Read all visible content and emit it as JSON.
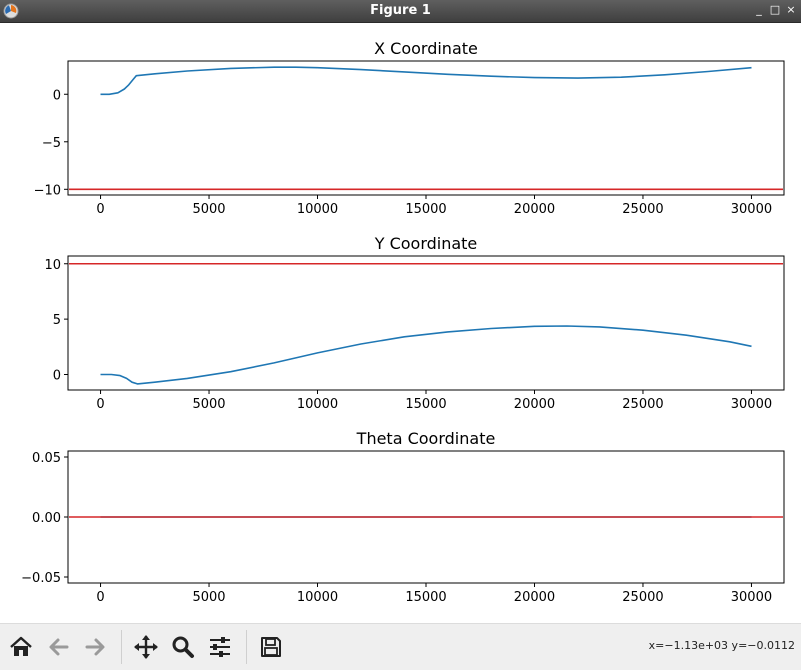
{
  "window": {
    "title": "Figure 1",
    "minimize_label": "_",
    "maximize_label": "□",
    "close_label": "×"
  },
  "toolbar": {
    "tools": [
      {
        "name": "home-icon"
      },
      {
        "name": "back-arrow-icon"
      },
      {
        "name": "forward-arrow-icon"
      },
      {
        "name": "pan-move-icon"
      },
      {
        "name": "zoom-magnifier-icon"
      },
      {
        "name": "configure-subplots-icon"
      },
      {
        "name": "save-floppy-icon"
      }
    ],
    "coordinate_readout": "x=−1.13e+03 y=−0.0112"
  },
  "colors": {
    "series": "#1f77b4",
    "limit_line": "#d62728",
    "axes": "#000000"
  },
  "chart_data": [
    {
      "type": "line",
      "title": "X Coordinate",
      "xlabel": "",
      "ylabel": "",
      "xlim": [
        -1500,
        31500
      ],
      "ylim": [
        -10.6,
        3.5
      ],
      "xticks": [
        0,
        5000,
        10000,
        15000,
        20000,
        25000,
        30000
      ],
      "xtick_labels": [
        "0",
        "5000",
        "10000",
        "15000",
        "20000",
        "25000",
        "30000"
      ],
      "yticks": [
        0,
        -5,
        -10
      ],
      "ytick_labels": [
        "0",
        "−5",
        "−10"
      ],
      "grid": false,
      "hlines": [
        -10
      ],
      "series": [
        {
          "x": [
            0,
            400,
            800,
            1100,
            1300,
            1500,
            1650,
            2500,
            4000,
            6000,
            8000,
            9000,
            10000,
            12000,
            14000,
            16000,
            18000,
            20000,
            22000,
            24000,
            26000,
            28000,
            30000
          ],
          "y": [
            0,
            0,
            0.15,
            0.55,
            1.0,
            1.55,
            1.95,
            2.15,
            2.45,
            2.72,
            2.85,
            2.85,
            2.8,
            2.6,
            2.35,
            2.1,
            1.9,
            1.75,
            1.7,
            1.8,
            2.05,
            2.4,
            2.8
          ]
        }
      ]
    },
    {
      "type": "line",
      "title": "Y Coordinate",
      "xlabel": "",
      "ylabel": "",
      "xlim": [
        -1500,
        31500
      ],
      "ylim": [
        -1.4,
        10.7
      ],
      "xticks": [
        0,
        5000,
        10000,
        15000,
        20000,
        25000,
        30000
      ],
      "xtick_labels": [
        "0",
        "5000",
        "10000",
        "15000",
        "20000",
        "25000",
        "30000"
      ],
      "yticks": [
        10,
        5,
        0
      ],
      "ytick_labels": [
        "10",
        "5",
        "0"
      ],
      "grid": false,
      "hlines": [
        10
      ],
      "series": [
        {
          "x": [
            0,
            500,
            900,
            1200,
            1450,
            1700,
            2500,
            4000,
            6000,
            8000,
            10000,
            12000,
            14000,
            16000,
            18000,
            20000,
            21500,
            23000,
            25000,
            27000,
            29000,
            30000
          ],
          "y": [
            0,
            0,
            -0.1,
            -0.35,
            -0.7,
            -0.85,
            -0.7,
            -0.35,
            0.25,
            1.05,
            1.95,
            2.75,
            3.4,
            3.85,
            4.15,
            4.35,
            4.38,
            4.3,
            4.0,
            3.55,
            2.95,
            2.55
          ]
        }
      ]
    },
    {
      "type": "line",
      "title": "Theta Coordinate",
      "xlabel": "",
      "ylabel": "",
      "xlim": [
        -1500,
        31500
      ],
      "ylim": [
        -0.055,
        0.055
      ],
      "xticks": [
        0,
        5000,
        10000,
        15000,
        20000,
        25000,
        30000
      ],
      "xtick_labels": [
        "0",
        "5000",
        "10000",
        "15000",
        "20000",
        "25000",
        "30000"
      ],
      "yticks": [
        0.05,
        0,
        -0.05
      ],
      "ytick_labels": [
        "0.05",
        "0.00",
        "−0.05"
      ],
      "grid": false,
      "hlines": [
        0
      ],
      "series": [
        {
          "x": [
            0,
            30000
          ],
          "y": [
            0,
            0
          ]
        }
      ]
    }
  ]
}
